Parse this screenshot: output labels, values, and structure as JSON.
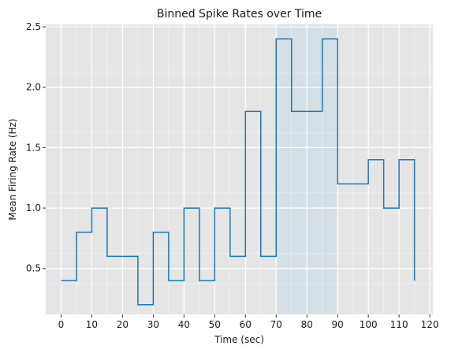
{
  "chart_data": {
    "type": "line",
    "step": "post",
    "title": "Binned Spike Rates over Time",
    "xlabel": "Time (sec)",
    "ylabel": "Mean Firing Rate (Hz)",
    "xlim": [
      -5,
      121
    ],
    "ylim": [
      0.12,
      2.52
    ],
    "xticks": [
      0,
      10,
      20,
      30,
      40,
      50,
      60,
      70,
      80,
      90,
      100,
      110,
      120
    ],
    "yticks": [
      0.5,
      1.0,
      1.5,
      2.0,
      2.5
    ],
    "xtick_labels": [
      "0",
      "10",
      "20",
      "30",
      "40",
      "50",
      "60",
      "70",
      "80",
      "90",
      "100",
      "110",
      "120"
    ],
    "ytick_labels": [
      "0.5",
      "1.0",
      "1.5",
      "2.0",
      "2.5"
    ],
    "grid": true,
    "legend": "none",
    "highlight_span": {
      "x0": 70,
      "x1": 90,
      "color": "#c9dbe8"
    },
    "series": [
      {
        "color": "#1f77b4",
        "x": [
          0,
          5,
          10,
          15,
          20,
          25,
          30,
          35,
          40,
          45,
          50,
          55,
          60,
          65,
          70,
          75,
          80,
          85,
          90,
          95,
          100,
          105,
          110,
          115
        ],
        "values": [
          0.4,
          0.8,
          1.0,
          0.6,
          0.6,
          0.2,
          0.8,
          0.4,
          1.0,
          0.4,
          1.0,
          0.6,
          1.8,
          0.6,
          2.4,
          1.8,
          1.8,
          2.4,
          1.2,
          1.2,
          1.4,
          1.0,
          1.4,
          0.4
        ]
      }
    ]
  }
}
